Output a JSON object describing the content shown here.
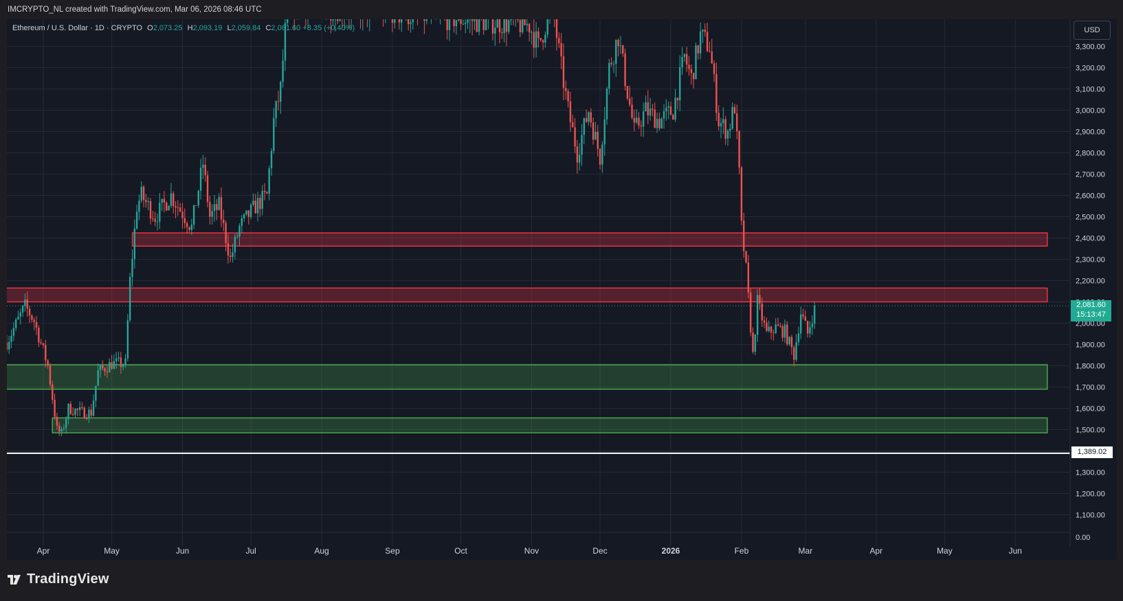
{
  "header": {
    "credit": "IMCRYPTO_NL created with TradingView.com, Mar 06, 2026 08:46 UTC",
    "symbol": "Ethereum / U.S. Dollar · 1D · CRYPTO",
    "ohlc": {
      "o_label": "O",
      "o": "2,073.25",
      "h_label": "H",
      "h": "2,093.19",
      "l_label": "L",
      "l": "2,059.84",
      "c_label": "C",
      "c": "2,081.60",
      "change": "+8.35 (+0.40%)"
    },
    "currency_button": "USD"
  },
  "price_labels": {
    "last": "2,081.60",
    "countdown": "15:13:47",
    "support": "1,389.02"
  },
  "footer": {
    "brand": "TradingView"
  },
  "colors": {
    "bg": "#151924",
    "up": "#26a69a",
    "down": "#ef5350",
    "resistance": "#f23645",
    "support": "#4caf50",
    "grid": "#262a36"
  },
  "chart_data": {
    "type": "candlestick",
    "title": "Ethereum / U.S. Dollar · 1D · CRYPTO",
    "y_axis": {
      "min": 1000,
      "max": 3400,
      "ticks": [
        1100,
        1200,
        1300,
        1400,
        1500,
        1600,
        1700,
        1800,
        1900,
        2000,
        2100,
        2200,
        2300,
        2400,
        2500,
        2600,
        2700,
        2800,
        2900,
        3000,
        3100,
        3200,
        3300
      ],
      "tick_labels": [
        "1,100.00",
        "1,200.00",
        "1,300.00",
        "1,400.00",
        "1,500.00",
        "1,600.00",
        "1,700.00",
        "1,800.00",
        "1,900.00",
        "2,000.00",
        "2,100.00",
        "2,200.00",
        "2,300.00",
        "2,400.00",
        "2,500.00",
        "2,600.00",
        "2,700.00",
        "2,800.00",
        "2,900.00",
        "3,000.00",
        "3,100.00",
        "3,200.00",
        "3,300.00"
      ],
      "partial_label": "0.00",
      "position": "right"
    },
    "x_axis": {
      "labels": [
        "Apr",
        "May",
        "Jun",
        "Jul",
        "Aug",
        "Sep",
        "Oct",
        "Nov",
        "Dec",
        "2026",
        "Feb",
        "Mar",
        "Apr",
        "May",
        "Jun"
      ],
      "bold_label": "2026"
    },
    "zones": [
      {
        "name": "resistance-upper",
        "kind": "resistance",
        "from": 2362,
        "to": 2424,
        "start": "2025-05-10",
        "end": "2026-06-15"
      },
      {
        "name": "resistance-lower",
        "kind": "resistance",
        "from": 2100,
        "to": 2165,
        "start": "2025-03-15",
        "end": "2026-06-15"
      },
      {
        "name": "support-upper",
        "kind": "support",
        "from": 1690,
        "to": 1805,
        "start": "2025-03-15",
        "end": "2026-06-15"
      },
      {
        "name": "support-lower",
        "kind": "support",
        "from": 1485,
        "to": 1555,
        "start": "2025-04-05",
        "end": "2026-06-15"
      }
    ],
    "horizontal_line": {
      "value": 1389.02
    },
    "last_price": 2081.6,
    "close_path": [
      [
        "2025-03-16",
        1910
      ],
      [
        "2025-03-24",
        2080
      ],
      [
        "2025-03-28",
        2010
      ],
      [
        "2025-04-03",
        1800
      ],
      [
        "2025-04-07",
        1500
      ],
      [
        "2025-04-09",
        1480
      ],
      [
        "2025-04-12",
        1600
      ],
      [
        "2025-04-18",
        1580
      ],
      [
        "2025-04-22",
        1580
      ],
      [
        "2025-04-25",
        1770
      ],
      [
        "2025-05-01",
        1810
      ],
      [
        "2025-05-07",
        1810
      ],
      [
        "2025-05-09",
        2200
      ],
      [
        "2025-05-12",
        2550
      ],
      [
        "2025-05-14",
        2600
      ],
      [
        "2025-05-20",
        2500
      ],
      [
        "2025-05-27",
        2600
      ],
      [
        "2025-06-05",
        2450
      ],
      [
        "2025-06-10",
        2750
      ],
      [
        "2025-06-13",
        2500
      ],
      [
        "2025-06-17",
        2550
      ],
      [
        "2025-06-22",
        2300
      ],
      [
        "2025-06-26",
        2450
      ],
      [
        "2025-07-03",
        2550
      ],
      [
        "2025-07-08",
        2600
      ],
      [
        "2025-07-11",
        2950
      ],
      [
        "2025-07-14",
        3100
      ],
      [
        "2025-07-17",
        3500
      ],
      [
        "2025-10-31",
        3400
      ],
      [
        "2025-11-04",
        3300
      ],
      [
        "2025-11-07",
        3400
      ],
      [
        "2025-11-10",
        3500
      ],
      [
        "2025-11-14",
        3200
      ],
      [
        "2025-11-17",
        3000
      ],
      [
        "2025-11-21",
        2800
      ],
      [
        "2025-11-26",
        3000
      ],
      [
        "2025-12-01",
        2780
      ],
      [
        "2025-12-05",
        3200
      ],
      [
        "2025-12-09",
        3350
      ],
      [
        "2025-12-12",
        3150
      ],
      [
        "2025-12-16",
        2900
      ],
      [
        "2025-12-21",
        3000
      ],
      [
        "2025-12-27",
        2950
      ],
      [
        "2026-01-02",
        3000
      ],
      [
        "2026-01-07",
        3250
      ],
      [
        "2026-01-10",
        3150
      ],
      [
        "2026-01-14",
        3350
      ],
      [
        "2026-01-18",
        3300
      ],
      [
        "2026-01-22",
        2950
      ],
      [
        "2026-01-26",
        2900
      ],
      [
        "2026-01-29",
        3020
      ],
      [
        "2026-01-31",
        2700
      ],
      [
        "2026-02-01",
        2450
      ],
      [
        "2026-02-03",
        2250
      ],
      [
        "2026-02-06",
        1850
      ],
      [
        "2026-02-08",
        2100
      ],
      [
        "2026-02-12",
        1950
      ],
      [
        "2026-02-16",
        1980
      ],
      [
        "2026-02-20",
        1960
      ],
      [
        "2026-02-24",
        1850
      ],
      [
        "2026-02-27",
        2050
      ],
      [
        "2026-03-02",
        1950
      ],
      [
        "2026-03-05",
        2073.25
      ]
    ],
    "grid": true
  }
}
